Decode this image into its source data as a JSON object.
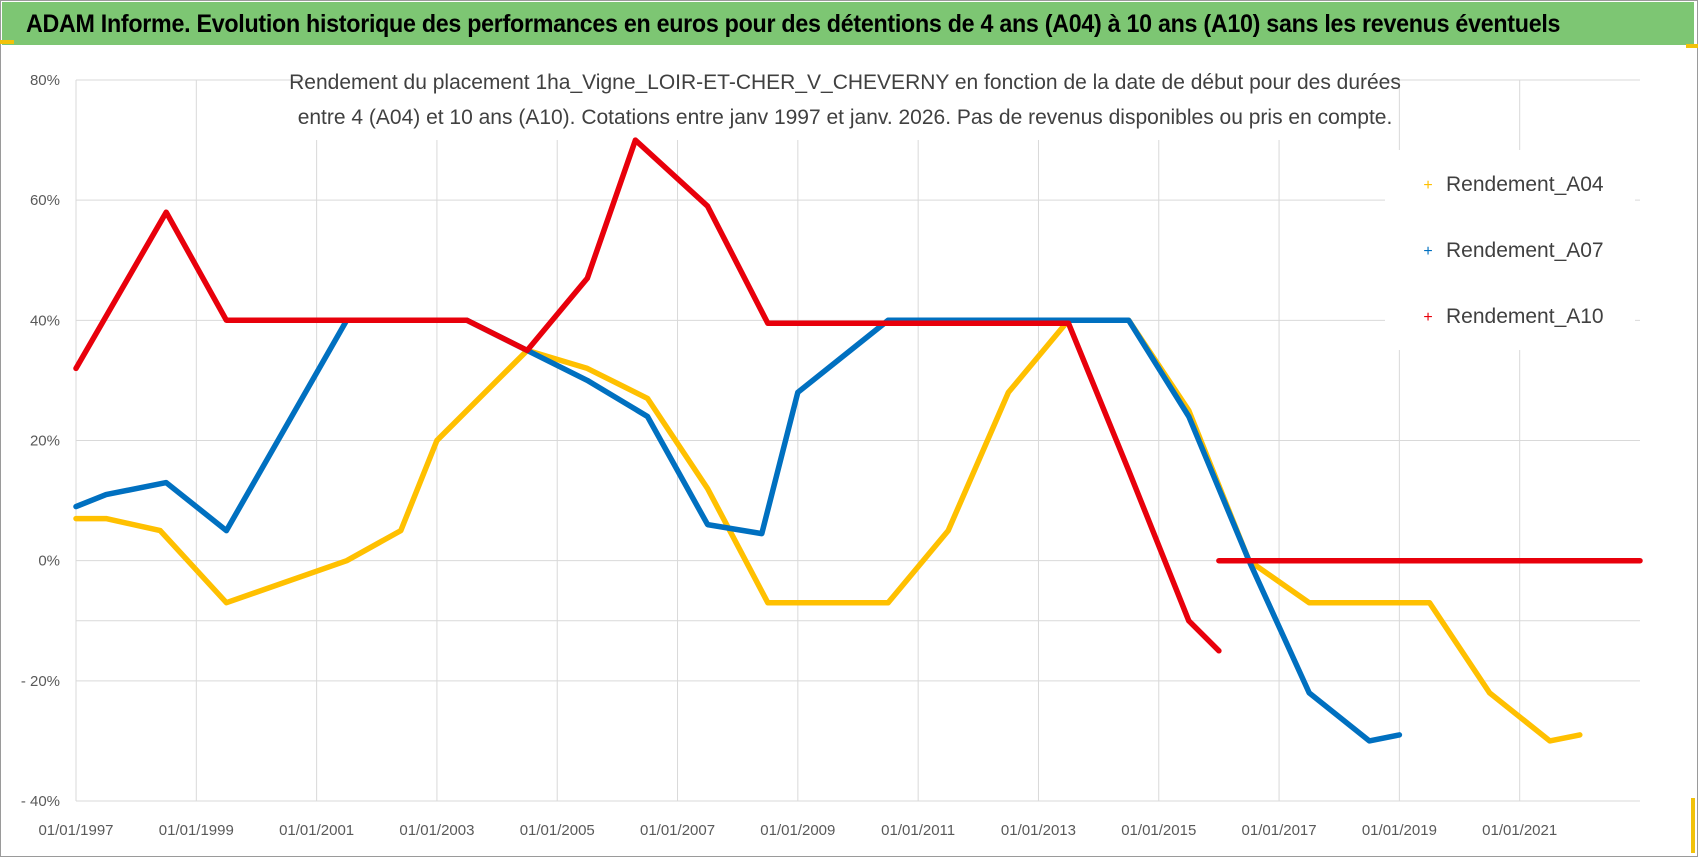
{
  "header": {
    "title": "ADAM Informe. Evolution historique des performances en euros pour des détentions de 4 ans (A04) à 10 ans (A10) sans les revenus éventuels"
  },
  "colors": {
    "banner": "#7dc673",
    "a04": "#ffc000",
    "a07": "#0070c0",
    "a10": "#e8000b",
    "grid": "#d9d9d9"
  },
  "chart_data": {
    "type": "line",
    "title_lines": [
      "Rendement du placement 1ha_Vigne_LOIR-ET-CHER_V_CHEVERNY en fonction de la date de début pour des durées",
      "entre 4 (A04) et 10 ans (A10).  Cotations entre janv 1997 et janv. 2026. Pas de revenus disponibles ou pris en compte."
    ],
    "xlabel": "",
    "ylabel": "",
    "xlim": [
      1997,
      2023
    ],
    "ylim": [
      -40,
      80
    ],
    "x_ticks": [
      1997,
      1999,
      2001,
      2003,
      2005,
      2007,
      2009,
      2011,
      2013,
      2015,
      2017,
      2019,
      2021
    ],
    "x_tick_labels": [
      "01/01/1997",
      "01/01/1999",
      "01/01/2001",
      "01/01/2003",
      "01/01/2005",
      "01/01/2007",
      "01/01/2009",
      "01/01/2011",
      "01/01/2013",
      "01/01/2015",
      "01/01/2017",
      "01/01/2019",
      "01/01/2021"
    ],
    "y_ticks": [
      80,
      60,
      40,
      20,
      0,
      -10,
      -20,
      -40
    ],
    "y_tick_labels": [
      "80%",
      "60%",
      "40%",
      "20%",
      "0%",
      "",
      "- 20%",
      "- 40%"
    ],
    "legend_position": "top-right",
    "series": [
      {
        "name": "Rendement_A04",
        "color": "#ffc000",
        "points": [
          [
            1997.0,
            7
          ],
          [
            1997.5,
            7
          ],
          [
            1998.4,
            5
          ],
          [
            1999.5,
            -7
          ],
          [
            2001.5,
            0
          ],
          [
            2002.4,
            5
          ],
          [
            2003.0,
            20
          ],
          [
            2004.5,
            35
          ],
          [
            2005.5,
            32
          ],
          [
            2006.5,
            27
          ],
          [
            2007.5,
            12
          ],
          [
            2008.5,
            -7
          ],
          [
            2010.5,
            -7
          ],
          [
            2011.5,
            5
          ],
          [
            2012.5,
            28
          ],
          [
            2013.5,
            40
          ],
          [
            2014.5,
            40
          ],
          [
            2015.5,
            25
          ],
          [
            2016.5,
            0
          ],
          [
            2017.5,
            -7
          ],
          [
            2019.5,
            -7
          ],
          [
            2020.5,
            -22
          ],
          [
            2021.5,
            -30
          ],
          [
            2022.0,
            -29
          ]
        ]
      },
      {
        "name": "Rendement_A07",
        "color": "#0070c0",
        "points": [
          [
            1997.0,
            9
          ],
          [
            1997.5,
            11
          ],
          [
            1998.5,
            13
          ],
          [
            1999.5,
            5
          ],
          [
            2001.5,
            40
          ],
          [
            2003.5,
            40
          ],
          [
            2004.5,
            35
          ],
          [
            2005.5,
            30
          ],
          [
            2006.5,
            24
          ],
          [
            2007.5,
            6
          ],
          [
            2008.4,
            4.5
          ],
          [
            2009.0,
            28
          ],
          [
            2010.5,
            40
          ],
          [
            2014.5,
            40
          ],
          [
            2015.5,
            24
          ],
          [
            2016.5,
            0
          ],
          [
            2017.5,
            -22
          ],
          [
            2018.5,
            -30
          ],
          [
            2019.0,
            -29
          ]
        ]
      },
      {
        "name": "Rendement_A10",
        "color": "#e8000b",
        "points": [
          [
            1997.0,
            32
          ],
          [
            1998.5,
            58
          ],
          [
            1999.5,
            40
          ],
          [
            2003.5,
            40
          ],
          [
            2004.5,
            35
          ],
          [
            2005.5,
            47
          ],
          [
            2006.3,
            70
          ],
          [
            2007.5,
            59
          ],
          [
            2008.5,
            39.5
          ],
          [
            2013.5,
            39.5
          ],
          [
            2014.5,
            15
          ],
          [
            2015.5,
            -10
          ],
          [
            2016.0,
            -15
          ]
        ]
      },
      {
        "name": "Rendement_A10",
        "color": "#e8000b",
        "in_legend": false,
        "points": [
          [
            2016.0,
            0
          ],
          [
            2023.0,
            0
          ]
        ]
      }
    ]
  }
}
